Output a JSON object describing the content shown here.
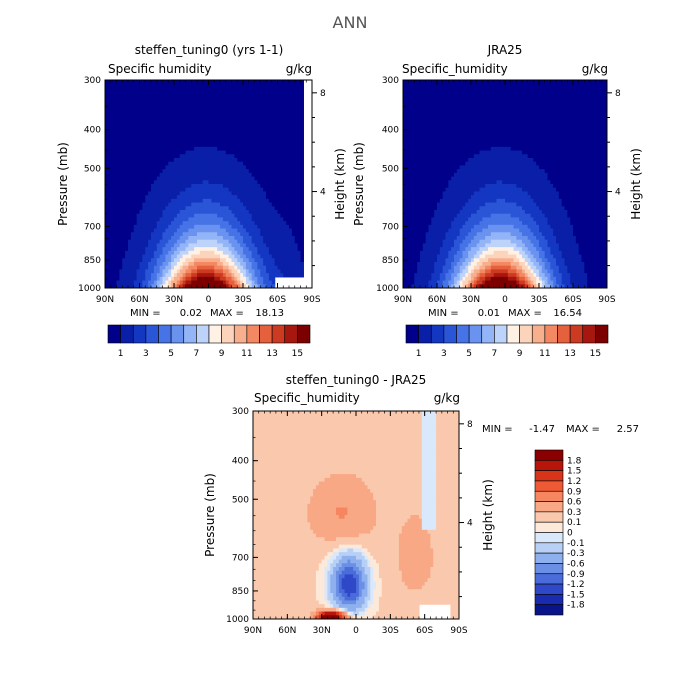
{
  "page_title": "ANN",
  "chart_data": [
    {
      "type": "heatmap",
      "title": "steffen_tuning0 (yrs 1-1)",
      "variable": "Specific humidity",
      "units": "g/kg",
      "ylabel": "Pressure (mb)",
      "right_label": "Height (km)",
      "x_ticks": [
        "90N",
        "60N",
        "30N",
        "0",
        "30S",
        "60S",
        "90S"
      ],
      "y_ticks": [
        "300",
        "400",
        "500",
        "700",
        "850",
        "1000"
      ],
      "height_ticks": [
        "8",
        "4"
      ],
      "min_label": "MIN =",
      "min_value": "0.02",
      "max_label": "MAX =",
      "max_value": "18.13",
      "min": 0.02,
      "max": 18.13,
      "colorbar": {
        "labels": [
          "1",
          "3",
          "5",
          "7",
          "9",
          "11",
          "13",
          "15"
        ],
        "colors": [
          "#00008a",
          "#0a1fa8",
          "#1437c2",
          "#2a55d6",
          "#4673e6",
          "#6a93f0",
          "#93b4f6",
          "#bed3fa",
          "#fff1e4",
          "#fcd4bb",
          "#f8af8e",
          "#f38862",
          "#e5603d",
          "#cc3a22",
          "#a8170f",
          "#7d0000"
        ]
      }
    },
    {
      "type": "heatmap",
      "title": "JRA25",
      "variable": "Specific_humidity",
      "units": "g/kg",
      "ylabel": "Pressure (mb)",
      "right_label": "Height (km)",
      "x_ticks": [
        "90N",
        "60N",
        "30N",
        "0",
        "30S",
        "60S",
        "90S"
      ],
      "y_ticks": [
        "300",
        "400",
        "500",
        "700",
        "850",
        "1000"
      ],
      "height_ticks": [
        "8",
        "4"
      ],
      "min_label": "MIN =",
      "min_value": "0.01",
      "max_label": "MAX =",
      "max_value": "16.54",
      "min": 0.01,
      "max": 16.54,
      "colorbar": {
        "labels": [
          "1",
          "3",
          "5",
          "7",
          "9",
          "11",
          "13",
          "15"
        ],
        "colors": [
          "#00008a",
          "#0a1fa8",
          "#1437c2",
          "#2a55d6",
          "#4673e6",
          "#6a93f0",
          "#93b4f6",
          "#bed3fa",
          "#fff1e4",
          "#fcd4bb",
          "#f8af8e",
          "#f38862",
          "#e5603d",
          "#cc3a22",
          "#a8170f",
          "#7d0000"
        ]
      }
    },
    {
      "type": "heatmap",
      "title": "steffen_tuning0 - JRA25",
      "variable": "Specific_humidity",
      "units": "g/kg",
      "ylabel": "Pressure (mb)",
      "right_label": "Height (km)",
      "x_ticks": [
        "90N",
        "60N",
        "30N",
        "0",
        "30S",
        "60S",
        "90S"
      ],
      "y_ticks": [
        "300",
        "400",
        "500",
        "700",
        "850",
        "1000"
      ],
      "height_ticks": [
        "8",
        "4"
      ],
      "min_label": "MIN =",
      "min_value": "-1.47",
      "max_label": "MAX =",
      "max_value": "2.57",
      "min": -1.47,
      "max": 2.57,
      "colorbar": {
        "labels": [
          "1.8",
          "1.5",
          "1.2",
          "0.9",
          "0.6",
          "0.3",
          "0.1",
          "0",
          "-0.1",
          "-0.3",
          "-0.6",
          "-0.9",
          "-1.2",
          "-1.5",
          "-1.8"
        ],
        "colors": [
          "#8a0000",
          "#b8150a",
          "#d8341a",
          "#ee5a36",
          "#f68660",
          "#f8a885",
          "#fac9ad",
          "#fde9d9",
          "#d9e8fa",
          "#b9d0f6",
          "#8fb0ee",
          "#6a8fe4",
          "#4a6cda",
          "#2e48c8",
          "#1b2bb0",
          "#0a148a"
        ]
      }
    }
  ]
}
